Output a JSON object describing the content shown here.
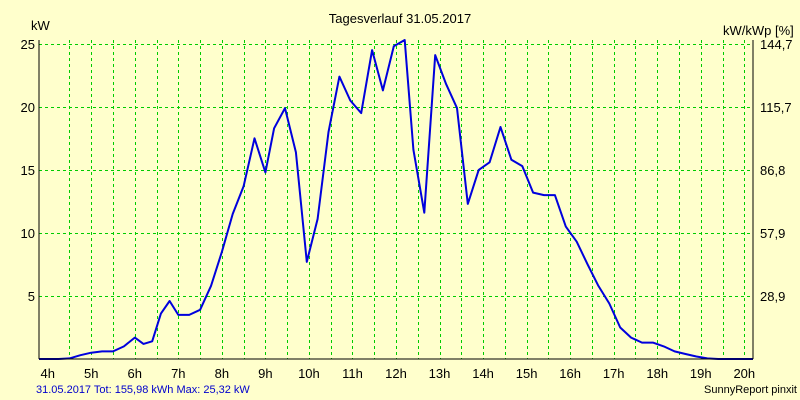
{
  "chart_data": {
    "type": "line",
    "title": "Tagesverlauf 31.05.2017",
    "left_unit": "kW",
    "right_unit": "kW/kWp [%]",
    "xlim": [
      3.8,
      20.2
    ],
    "ylim": [
      0,
      25.3
    ],
    "x_ticks": [
      4,
      5,
      6,
      7,
      8,
      9,
      10,
      11,
      12,
      13,
      14,
      15,
      16,
      17,
      18,
      19,
      20
    ],
    "x_tick_labels": [
      "4h",
      "5h",
      "6h",
      "7h",
      "8h",
      "9h",
      "10h",
      "11h",
      "12h",
      "13h",
      "14h",
      "15h",
      "16h",
      "17h",
      "18h",
      "19h",
      "20h"
    ],
    "x_grid": [
      4.5,
      5,
      5.5,
      6,
      6.5,
      7,
      7.5,
      8,
      8.5,
      9,
      9.5,
      10,
      10.5,
      11,
      11.5,
      12,
      12.5,
      13,
      13.5,
      14,
      14.5,
      15,
      15.5,
      16,
      16.5,
      17,
      17.5,
      18,
      18.5,
      19,
      19.5,
      20
    ],
    "y_ticks_left": [
      5,
      10,
      15,
      20,
      25
    ],
    "y_tick_labels_left": [
      "5",
      "10",
      "15",
      "20",
      "25"
    ],
    "y_ticks_right": [
      5,
      10,
      15,
      20,
      25
    ],
    "y_tick_labels_right": [
      "28,9",
      "57,9",
      "86,8",
      "115,7",
      "144,7"
    ],
    "grid": true,
    "line_color": "#0000dd",
    "grid_color": "#00cc00",
    "series": [
      {
        "x": [
          3.8,
          4.25,
          4.5,
          4.75,
          5,
          5.25,
          5.5,
          5.75,
          6,
          6.2,
          6.4,
          6.6,
          6.8,
          7,
          7.25,
          7.5,
          7.75,
          8,
          8.25,
          8.5,
          8.75,
          9,
          9.2,
          9.45,
          9.7,
          9.95,
          10.2,
          10.45,
          10.7,
          10.95,
          11.2,
          11.45,
          11.7,
          11.95,
          12.2,
          12.4,
          12.65,
          12.9,
          13.15,
          13.4,
          13.65,
          13.9,
          14.15,
          14.4,
          14.65,
          14.9,
          15.15,
          15.4,
          15.65,
          15.9,
          16.15,
          16.4,
          16.65,
          16.9,
          17.15,
          17.4,
          17.65,
          17.9,
          18.15,
          18.4,
          18.65,
          18.9,
          19.15,
          19.4,
          19.65,
          19.9,
          20.2
        ],
        "y": [
          0,
          0,
          0.05,
          0.3,
          0.5,
          0.6,
          0.6,
          1.0,
          1.7,
          1.2,
          1.4,
          3.6,
          4.6,
          3.5,
          3.5,
          3.9,
          5.8,
          8.5,
          11.5,
          13.7,
          17.5,
          14.8,
          18.3,
          19.9,
          16.4,
          7.7,
          11.1,
          18.0,
          22.4,
          20.5,
          19.5,
          24.5,
          21.3,
          24.8,
          25.3,
          16.6,
          11.6,
          24.1,
          21.8,
          19.9,
          12.3,
          15.0,
          15.6,
          18.4,
          15.8,
          15.3,
          13.2,
          13.0,
          13.0,
          10.5,
          9.3,
          7.5,
          5.8,
          4.4,
          2.5,
          1.7,
          1.3,
          1.3,
          1.0,
          0.6,
          0.4,
          0.2,
          0.05,
          0,
          0,
          0,
          0
        ]
      }
    ]
  },
  "footer": {
    "left": "31.05.2017 Tot: 155,98 kWh Max: 25,32 kW",
    "right": "SunnyReport pinxit"
  }
}
